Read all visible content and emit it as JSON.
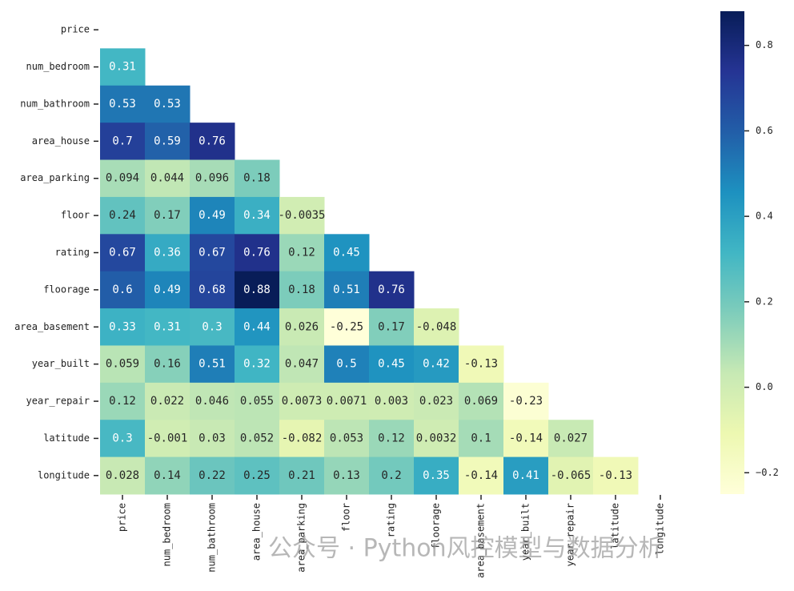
{
  "chart_data": {
    "type": "heatmap",
    "categories": [
      "price",
      "num_bedroom",
      "num_bathroom",
      "area_house",
      "area_parking",
      "floor",
      "rating",
      "floorage",
      "area_basement",
      "year_built",
      "year_repair",
      "latitude",
      "longitude"
    ],
    "values": [
      [
        null,
        null,
        null,
        null,
        null,
        null,
        null,
        null,
        null,
        null,
        null,
        null,
        null
      ],
      [
        0.31,
        null,
        null,
        null,
        null,
        null,
        null,
        null,
        null,
        null,
        null,
        null,
        null
      ],
      [
        0.53,
        0.53,
        null,
        null,
        null,
        null,
        null,
        null,
        null,
        null,
        null,
        null,
        null
      ],
      [
        0.7,
        0.59,
        0.76,
        null,
        null,
        null,
        null,
        null,
        null,
        null,
        null,
        null,
        null
      ],
      [
        0.094,
        0.044,
        0.096,
        0.18,
        null,
        null,
        null,
        null,
        null,
        null,
        null,
        null,
        null
      ],
      [
        0.24,
        0.17,
        0.49,
        0.34,
        -0.0035,
        null,
        null,
        null,
        null,
        null,
        null,
        null,
        null
      ],
      [
        0.67,
        0.36,
        0.67,
        0.76,
        0.12,
        0.45,
        null,
        null,
        null,
        null,
        null,
        null,
        null
      ],
      [
        0.6,
        0.49,
        0.68,
        0.88,
        0.18,
        0.51,
        0.76,
        null,
        null,
        null,
        null,
        null,
        null
      ],
      [
        0.33,
        0.31,
        0.3,
        0.44,
        0.026,
        -0.25,
        0.17,
        -0.048,
        null,
        null,
        null,
        null,
        null
      ],
      [
        0.059,
        0.16,
        0.51,
        0.32,
        0.047,
        0.5,
        0.45,
        0.42,
        -0.13,
        null,
        null,
        null,
        null
      ],
      [
        0.12,
        0.022,
        0.046,
        0.055,
        0.0073,
        0.0071,
        0.003,
        0.023,
        0.069,
        -0.23,
        null,
        null,
        null
      ],
      [
        0.3,
        -0.001,
        0.03,
        0.052,
        -0.082,
        0.053,
        0.12,
        0.0032,
        0.1,
        -0.14,
        0.027,
        null,
        null
      ],
      [
        0.028,
        0.14,
        0.22,
        0.25,
        0.21,
        0.13,
        0.2,
        0.35,
        -0.14,
        0.41,
        -0.065,
        -0.13,
        null
      ]
    ],
    "colormap": "YlGnBu",
    "colors": [
      "#ffffd9",
      "#edf8b1",
      "#c7e9b4",
      "#7fcdbb",
      "#41b6c4",
      "#1d91c0",
      "#225ea8",
      "#253494",
      "#081d58"
    ],
    "clim": [
      -0.25,
      0.88
    ],
    "cticks": [
      0.8,
      0.6,
      0.4,
      0.2,
      {
        "value": 0,
        "label": "0.0"
      },
      {
        "value": -0.2,
        "label": "−0.2"
      }
    ],
    "annotation": "公众号 · Python风控模型与数据分析"
  }
}
